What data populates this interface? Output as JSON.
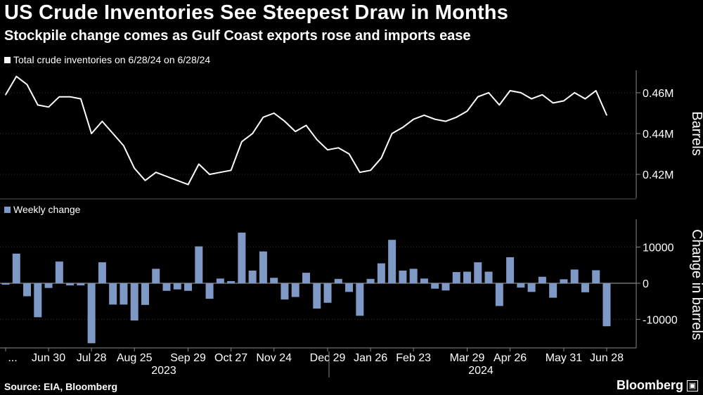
{
  "header": {
    "title": "US Crude Inventories See Steepest Draw in Months",
    "subtitle": "Stockpile change comes as Gulf Coast exports rose and imports ease"
  },
  "footer": {
    "source": "Source: EIA, Bloomberg",
    "brand": "Bloomberg"
  },
  "colors": {
    "background": "#000000",
    "line": "#ffffff",
    "bar": "#7f99c7",
    "grid": "#333333"
  },
  "chart_data": [
    {
      "type": "line",
      "legend": "Total crude inventories on 6/28/24 on 6/28/24",
      "ylabel": "Barrels",
      "ylim": [
        0.409,
        0.471
      ],
      "yticks": [
        {
          "value": 0.46,
          "label": "0.46M"
        },
        {
          "value": 0.44,
          "label": "0.44M"
        },
        {
          "value": 0.42,
          "label": "0.42M"
        }
      ],
      "grid": true,
      "values": [
        0.459,
        0.468,
        0.464,
        0.454,
        0.453,
        0.458,
        0.458,
        0.457,
        0.44,
        0.446,
        0.44,
        0.434,
        0.423,
        0.417,
        0.421,
        0.419,
        0.417,
        0.415,
        0.425,
        0.42,
        0.421,
        0.422,
        0.436,
        0.44,
        0.448,
        0.45,
        0.446,
        0.441,
        0.444,
        0.437,
        0.432,
        0.433,
        0.43,
        0.421,
        0.422,
        0.428,
        0.44,
        0.443,
        0.447,
        0.449,
        0.447,
        0.446,
        0.448,
        0.451,
        0.458,
        0.46,
        0.454,
        0.461,
        0.46,
        0.457,
        0.459,
        0.455,
        0.456,
        0.46,
        0.457,
        0.461,
        0.449
      ]
    },
    {
      "type": "bar",
      "legend": "Weekly change",
      "ylabel": "Change in barrels",
      "ylim": [
        -17500,
        17500
      ],
      "yticks": [
        {
          "value": 10000,
          "label": "10000"
        },
        {
          "value": 0,
          "label": "0"
        },
        {
          "value": -10000,
          "label": "-10000"
        }
      ],
      "grid": true,
      "values": [
        -400,
        8200,
        -3600,
        -9400,
        -1300,
        6000,
        -600,
        -600,
        -16600,
        5800,
        -5900,
        -5900,
        -10300,
        -6000,
        4000,
        -2100,
        -1700,
        -2100,
        10200,
        -4300,
        1300,
        600,
        14000,
        3500,
        8800,
        1500,
        -4500,
        -3800,
        2900,
        -7000,
        -5400,
        1200,
        -2400,
        -9000,
        1200,
        5500,
        12000,
        3500,
        4000,
        1300,
        -1500,
        -2000,
        3100,
        3200,
        5800,
        3200,
        -6300,
        7200,
        -1200,
        -2400,
        1800,
        -4000,
        1100,
        3800,
        -2500,
        3600,
        -11900
      ]
    }
  ],
  "x_axis": {
    "tick_labels": [
      "...",
      "Jun 30",
      "Jul 28",
      "Aug 25",
      "Sep 29",
      "Oct 27",
      "Nov 24",
      "Dec 29",
      "Jan 26",
      "Feb 23",
      "Mar 29",
      "Apr 26",
      "May 31",
      "Jun 28"
    ],
    "years": [
      "2023",
      "2024"
    ]
  }
}
